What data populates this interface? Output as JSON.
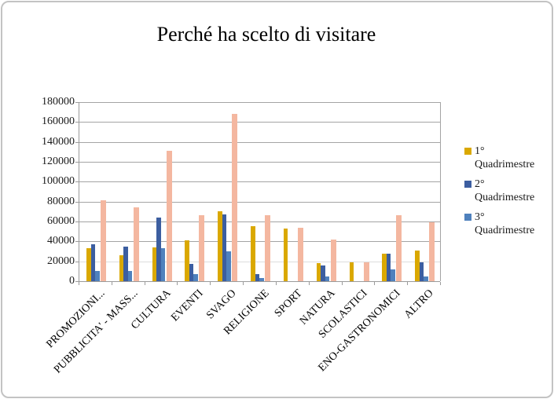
{
  "title": "Perché ha scelto di visitare",
  "colors": {
    "series1_gold": "#DAA800",
    "series2_dark_blue": "#3C5EA0",
    "series3_light_blue": "#4F81BD",
    "series4_salmon": "#F4B7A0",
    "gridline": "#A4A4A4",
    "gridline_light": "#DCDCDC",
    "axis": "#9B9B9B",
    "frame_border": "#C3C3C3"
  },
  "legend": {
    "position": "right",
    "entries": [
      "1° Quadrimestre",
      "2° Quadrimestre",
      "3° Quadrimestre"
    ]
  },
  "chart_data": {
    "type": "bar",
    "title": "Perché ha scelto di visitare",
    "xlabel": "",
    "ylabel": "",
    "ylim": [
      0,
      180000
    ],
    "ytick_step": 20000,
    "yticks": [
      "180000",
      "160000",
      "140000",
      "120000",
      "100000",
      "80000",
      "60000",
      "40000",
      "20000",
      "0"
    ],
    "grid": true,
    "legend_position": "right",
    "categories": [
      "PROMOZIONI...",
      "PUBBLICITA' - MASS...",
      "CULTURA",
      "EVENTI",
      "SVAGO",
      "RELIGIONE",
      "SPORT",
      "NATURA",
      "SCOLASTICI",
      "ENO-GASTRONOMICI",
      "ALTRO"
    ],
    "series": [
      {
        "name": "1° Quadrimestre",
        "color": "#DAA800",
        "in_legend": true,
        "values": [
          33000,
          26000,
          34000,
          41000,
          70000,
          55000,
          53000,
          18000,
          19000,
          28000,
          31000
        ]
      },
      {
        "name": "2° Quadrimestre",
        "color": "#3C5EA0",
        "in_legend": true,
        "values": [
          37000,
          35000,
          64000,
          17000,
          67000,
          7000,
          0,
          16000,
          0,
          28000,
          19000
        ]
      },
      {
        "name": "3° Quadrimestre",
        "color": "#4F81BD",
        "in_legend": true,
        "values": [
          10000,
          10000,
          33000,
          7000,
          30000,
          3000,
          0,
          5000,
          0,
          12000,
          5000
        ]
      },
      {
        "name": "",
        "color": "#F4B7A0",
        "in_legend": false,
        "values": [
          81000,
          74000,
          131000,
          66000,
          168000,
          66000,
          54000,
          42000,
          19000,
          66000,
          59000
        ]
      }
    ]
  }
}
